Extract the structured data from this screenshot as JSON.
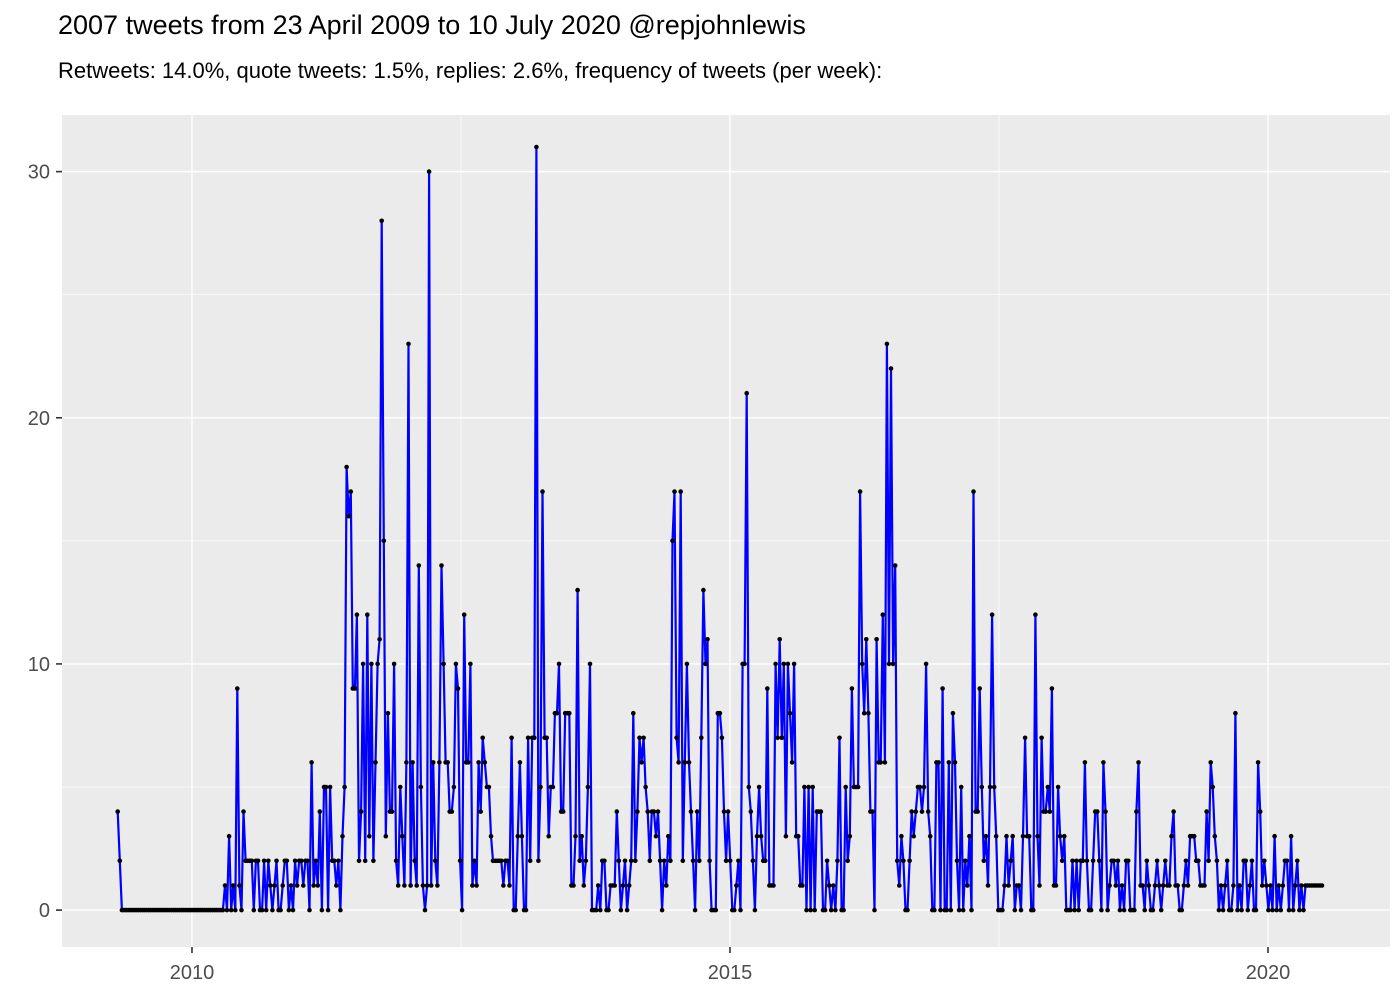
{
  "title": "2007 tweets from 23 April 2009 to 10 July 2020 @repjohnlewis",
  "subtitle": "Retweets: 14.0%, quote tweets: 1.5%, replies: 2.6%, frequency of tweets (per week):",
  "chart_data": {
    "type": "line",
    "series_name": "tweets-per-week",
    "title": "2007 tweets from 23 April 2009 to 10 July 2020 @repjohnlewis",
    "subtitle": "Retweets: 14.0%, quote tweets: 1.5%, replies: 2.6%, frequency of tweets (per week):",
    "xlabel": "",
    "ylabel": "",
    "x_start_decimal_year": 2009.31,
    "x_step_years": 0.019165,
    "xlim": [
      2008.792,
      2021.134
    ],
    "ylim": [
      -1.5,
      32.3
    ],
    "x_tick_values": [
      2010,
      2015,
      2020
    ],
    "x_tick_labels": [
      "2010",
      "2015",
      "2020"
    ],
    "x_minor_gridlines": [
      2012.5,
      2017.5
    ],
    "y_tick_values": [
      0,
      10,
      20,
      30
    ],
    "y_tick_labels": [
      "0",
      "10",
      "20",
      "30"
    ],
    "y_minor_gridlines": [
      5,
      15,
      25
    ],
    "grid": true,
    "legend": "none",
    "panel_bg": "#EBEBEB",
    "grid_color": "#FFFFFF",
    "axis_text_color": "#4D4D4D",
    "tick_mark_color": "#333333",
    "line_color": "#0000FF",
    "point_color": "#000000",
    "values": [
      4,
      2,
      0,
      0,
      0,
      0,
      0,
      0,
      0,
      0,
      0,
      0,
      0,
      0,
      0,
      0,
      0,
      0,
      0,
      0,
      0,
      0,
      0,
      0,
      0,
      0,
      0,
      0,
      0,
      0,
      0,
      0,
      0,
      0,
      0,
      0,
      0,
      0,
      0,
      0,
      0,
      0,
      0,
      0,
      0,
      0,
      0,
      0,
      0,
      0,
      0,
      0,
      1,
      0,
      3,
      0,
      1,
      0,
      9,
      1,
      0,
      4,
      2,
      2,
      2,
      2,
      0,
      2,
      2,
      0,
      0,
      2,
      0,
      2,
      1,
      0,
      1,
      2,
      0,
      0,
      1,
      2,
      2,
      0,
      1,
      0,
      2,
      1,
      2,
      2,
      1,
      2,
      2,
      0,
      6,
      1,
      2,
      1,
      4,
      0,
      5,
      5,
      0,
      5,
      2,
      2,
      1,
      2,
      0,
      3,
      5,
      18,
      16,
      17,
      9,
      9,
      12,
      2,
      4,
      10,
      2,
      12,
      3,
      10,
      2,
      6,
      10,
      11,
      28,
      15,
      3,
      8,
      4,
      4,
      10,
      2,
      1,
      5,
      3,
      1,
      6,
      23,
      1,
      6,
      2,
      1,
      14,
      5,
      1,
      0,
      1,
      30,
      1,
      6,
      2,
      1,
      6,
      14,
      10,
      6,
      6,
      4,
      4,
      5,
      10,
      9,
      2,
      0,
      12,
      6,
      6,
      10,
      1,
      2,
      1,
      6,
      4,
      7,
      6,
      5,
      5,
      3,
      2,
      2,
      2,
      2,
      2,
      1,
      2,
      2,
      1,
      7,
      0,
      0,
      3,
      6,
      3,
      0,
      0,
      7,
      2,
      7,
      7,
      31,
      2,
      5,
      17,
      7,
      7,
      3,
      5,
      5,
      8,
      8,
      10,
      4,
      4,
      8,
      8,
      8,
      1,
      1,
      3,
      13,
      2,
      3,
      1,
      2,
      5,
      10,
      0,
      0,
      0,
      1,
      0,
      2,
      2,
      0,
      0,
      1,
      1,
      1,
      4,
      2,
      0,
      1,
      2,
      0,
      1,
      2,
      8,
      2,
      4,
      7,
      6,
      7,
      5,
      4,
      2,
      4,
      4,
      3,
      4,
      2,
      0,
      2,
      1,
      3,
      2,
      15,
      17,
      7,
      6,
      17,
      2,
      6,
      10,
      6,
      4,
      2,
      0,
      4,
      2,
      7,
      13,
      10,
      11,
      2,
      0,
      0,
      0,
      8,
      8,
      7,
      4,
      2,
      4,
      2,
      0,
      0,
      1,
      2,
      0,
      10,
      10,
      21,
      5,
      4,
      2,
      0,
      3,
      5,
      3,
      2,
      2,
      9,
      1,
      1,
      1,
      10,
      7,
      11,
      7,
      10,
      3,
      10,
      8,
      6,
      10,
      3,
      3,
      1,
      1,
      5,
      0,
      5,
      0,
      5,
      0,
      4,
      4,
      4,
      0,
      0,
      2,
      1,
      0,
      1,
      0,
      2,
      7,
      0,
      0,
      5,
      2,
      3,
      9,
      5,
      5,
      5,
      17,
      10,
      8,
      11,
      8,
      4,
      4,
      0,
      11,
      6,
      6,
      12,
      6,
      23,
      10,
      22,
      10,
      14,
      2,
      1,
      3,
      2,
      0,
      0,
      2,
      4,
      3,
      4,
      5,
      5,
      4,
      5,
      10,
      4,
      3,
      0,
      0,
      6,
      6,
      0,
      9,
      0,
      0,
      6,
      0,
      8,
      6,
      2,
      0,
      5,
      0,
      2,
      1,
      3,
      0,
      17,
      4,
      4,
      9,
      5,
      2,
      3,
      1,
      5,
      12,
      5,
      3,
      0,
      0,
      0,
      1,
      3,
      1,
      2,
      3,
      0,
      1,
      1,
      0,
      3,
      7,
      3,
      3,
      0,
      0,
      12,
      3,
      1,
      7,
      4,
      4,
      5,
      4,
      9,
      1,
      1,
      5,
      3,
      2,
      3,
      0,
      0,
      0,
      2,
      0,
      2,
      0,
      2,
      2,
      6,
      2,
      0,
      0,
      2,
      4,
      4,
      2,
      0,
      6,
      4,
      0,
      1,
      2,
      2,
      1,
      2,
      0,
      1,
      0,
      2,
      2,
      0,
      0,
      0,
      4,
      6,
      1,
      1,
      0,
      2,
      1,
      0,
      0,
      1,
      2,
      1,
      0,
      1,
      2,
      1,
      1,
      3,
      4,
      1,
      1,
      0,
      0,
      1,
      2,
      1,
      3,
      3,
      3,
      2,
      2,
      1,
      1,
      1,
      4,
      2,
      6,
      5,
      3,
      2,
      0,
      1,
      0,
      1,
      2,
      0,
      0,
      1,
      8,
      0,
      1,
      0,
      2,
      2,
      0,
      1,
      2,
      0,
      0,
      6,
      4,
      1,
      2,
      1,
      0,
      1,
      0,
      3,
      0,
      1,
      0,
      1,
      2,
      2,
      0,
      3,
      0,
      1,
      2,
      0,
      1,
      0,
      1,
      1,
      1,
      1,
      1,
      1,
      1,
      1,
      1
    ]
  }
}
